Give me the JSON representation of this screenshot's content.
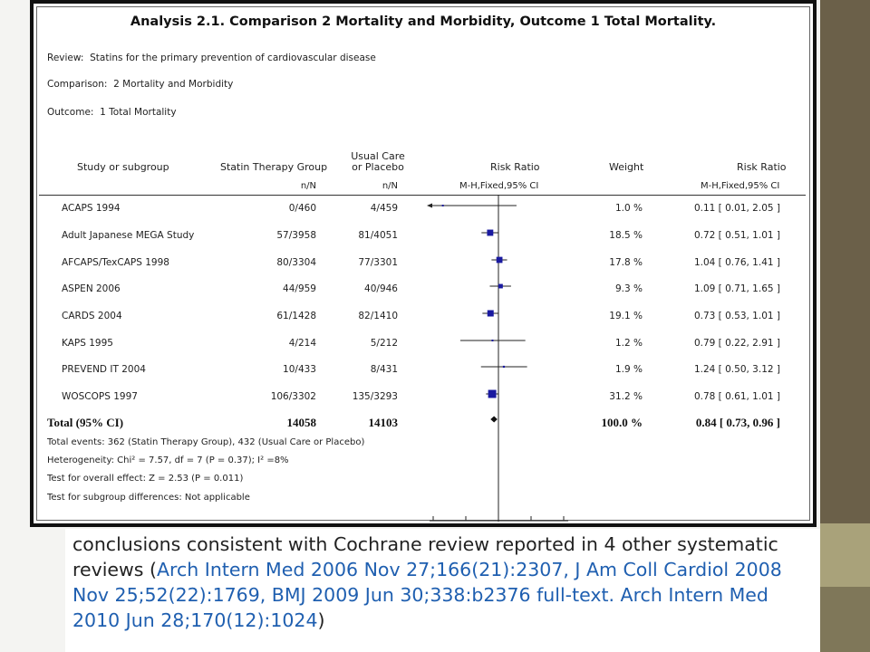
{
  "figure": {
    "title": "Analysis 2.1.    Comparison 2 Mortality and Morbidity, Outcome 1 Total Mortality.",
    "review_label": "Review:",
    "review": "Statins for the primary prevention of cardiovascular disease",
    "comparison_label": "Comparison:",
    "comparison": "2 Mortality and Morbidity",
    "outcome_label": "Outcome:",
    "outcome": "1 Total Mortality",
    "headers": {
      "study": "Study or subgroup",
      "statin": "Statin Therapy Group",
      "control_line1": "Usual Care",
      "control_line2": "or Placebo",
      "rr_plot": "Risk Ratio",
      "weight": "Weight",
      "rr_value": "Risk Ratio",
      "statin_sub": "n/N",
      "control_sub": "n/N",
      "plot_sub": "M-H,Fixed,95% CI",
      "value_sub": "M-H,Fixed,95% CI"
    },
    "total": {
      "label": "Total (95% CI)",
      "statin": "14058",
      "control": "14103",
      "weight": "100.0 %",
      "rr": "0.84 [ 0.73, 0.96 ]"
    },
    "footer": [
      "Total events: 362 (Statin Therapy Group), 432 (Usual Care or Placebo)",
      "Heterogeneity: Chi² = 7.57, df = 7 (P = 0.37); I² =8%",
      "Test for overall effect: Z = 2.53 (P = 0.011)",
      "Test for subgroup differences: Not applicable"
    ]
  },
  "chart_data": {
    "type": "forest",
    "scale": "log",
    "reference_line": 1,
    "marker_color": "#1a1aa0",
    "studies": [
      {
        "name": "ACAPS 1994",
        "statin": "0/460",
        "control": "4/459",
        "weight": "1.0 %",
        "rr_text": "0.11 [ 0.01, 2.05 ]",
        "rr": 0.11,
        "lo": 0.01,
        "hi": 2.05,
        "w": 1.0
      },
      {
        "name": "Adult Japanese MEGA Study",
        "statin": "57/3958",
        "control": "81/4051",
        "weight": "18.5 %",
        "rr_text": "0.72 [ 0.51, 1.01 ]",
        "rr": 0.72,
        "lo": 0.51,
        "hi": 1.01,
        "w": 18.5
      },
      {
        "name": "AFCAPS/TexCAPS 1998",
        "statin": "80/3304",
        "control": "77/3301",
        "weight": "17.8 %",
        "rr_text": "1.04 [ 0.76, 1.41 ]",
        "rr": 1.04,
        "lo": 0.76,
        "hi": 1.41,
        "w": 17.8
      },
      {
        "name": "ASPEN 2006",
        "statin": "44/959",
        "control": "40/946",
        "weight": "9.3 %",
        "rr_text": "1.09 [ 0.71, 1.65 ]",
        "rr": 1.09,
        "lo": 0.71,
        "hi": 1.65,
        "w": 9.3
      },
      {
        "name": "CARDS 2004",
        "statin": "61/1428",
        "control": "82/1410",
        "weight": "19.1 %",
        "rr_text": "0.73 [ 0.53, 1.01 ]",
        "rr": 0.73,
        "lo": 0.53,
        "hi": 1.01,
        "w": 19.1
      },
      {
        "name": "KAPS 1995",
        "statin": "4/214",
        "control": "5/212",
        "weight": "1.2 %",
        "rr_text": "0.79 [ 0.22, 2.91 ]",
        "rr": 0.79,
        "lo": 0.22,
        "hi": 2.91,
        "w": 1.2
      },
      {
        "name": "PREVEND IT 2004",
        "statin": "10/433",
        "control": "8/431",
        "weight": "1.9 %",
        "rr_text": "1.24 [ 0.50, 3.12 ]",
        "rr": 1.24,
        "lo": 0.5,
        "hi": 3.12,
        "w": 1.9
      },
      {
        "name": "WOSCOPS 1997",
        "statin": "106/3302",
        "control": "135/3293",
        "weight": "31.2 %",
        "rr_text": "0.78 [ 0.61, 1.01 ]",
        "rr": 0.78,
        "lo": 0.61,
        "hi": 1.01,
        "w": 31.2
      }
    ],
    "pooled": {
      "rr": 0.84,
      "lo": 0.73,
      "hi": 0.96
    }
  },
  "note": {
    "text": "conclusions consistent with Cochrane review reported in 4 other systematic reviews (",
    "refs": "Arch Intern Med 2006 Nov 27;166(21):2307, J Am Coll Cardiol 2008 Nov 25;52(22):1769, BMJ 2009 Jun 30;338:b2376 full-text. Arch Intern Med 2010 Jun 28;170(12):1024",
    "close": ")"
  }
}
